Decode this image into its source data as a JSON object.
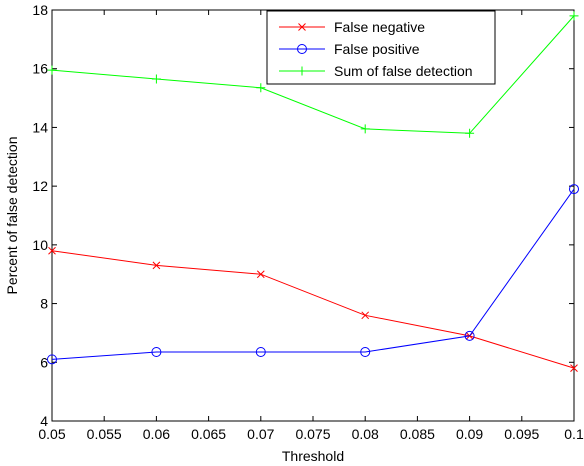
{
  "chart_data": {
    "type": "line",
    "title": "",
    "xlabel": "Threshold",
    "ylabel": "Percent of false detection",
    "xlim": [
      0.05,
      0.1
    ],
    "ylim": [
      4,
      18
    ],
    "x_ticks": [
      0.05,
      0.055,
      0.06,
      0.065,
      0.07,
      0.075,
      0.08,
      0.085,
      0.09,
      0.095,
      0.1
    ],
    "x_tick_labels": [
      "0.05",
      "0.055",
      "0.06",
      "0.065",
      "0.07",
      "0.075",
      "0.08",
      "0.085",
      "0.09",
      "0.095",
      "0.1"
    ],
    "y_ticks": [
      4,
      6,
      8,
      10,
      12,
      14,
      16,
      18
    ],
    "y_tick_labels": [
      "4",
      "6",
      "8",
      "10",
      "12",
      "14",
      "16",
      "18"
    ],
    "grid": false,
    "legend_position": "top-right",
    "x": [
      0.05,
      0.06,
      0.07,
      0.08,
      0.09,
      0.1
    ],
    "series": [
      {
        "name": "False negative",
        "color": "#ff0000",
        "marker": "x",
        "values": [
          9.8,
          9.3,
          9.0,
          7.6,
          6.9,
          5.8
        ]
      },
      {
        "name": "False positive",
        "color": "#0000ff",
        "marker": "o",
        "values": [
          6.1,
          6.35,
          6.35,
          6.35,
          6.9,
          11.9
        ]
      },
      {
        "name": "Sum of false detection",
        "color": "#00ff00",
        "marker": "+",
        "values": [
          15.95,
          15.65,
          15.35,
          13.95,
          13.8,
          17.8
        ]
      }
    ]
  }
}
